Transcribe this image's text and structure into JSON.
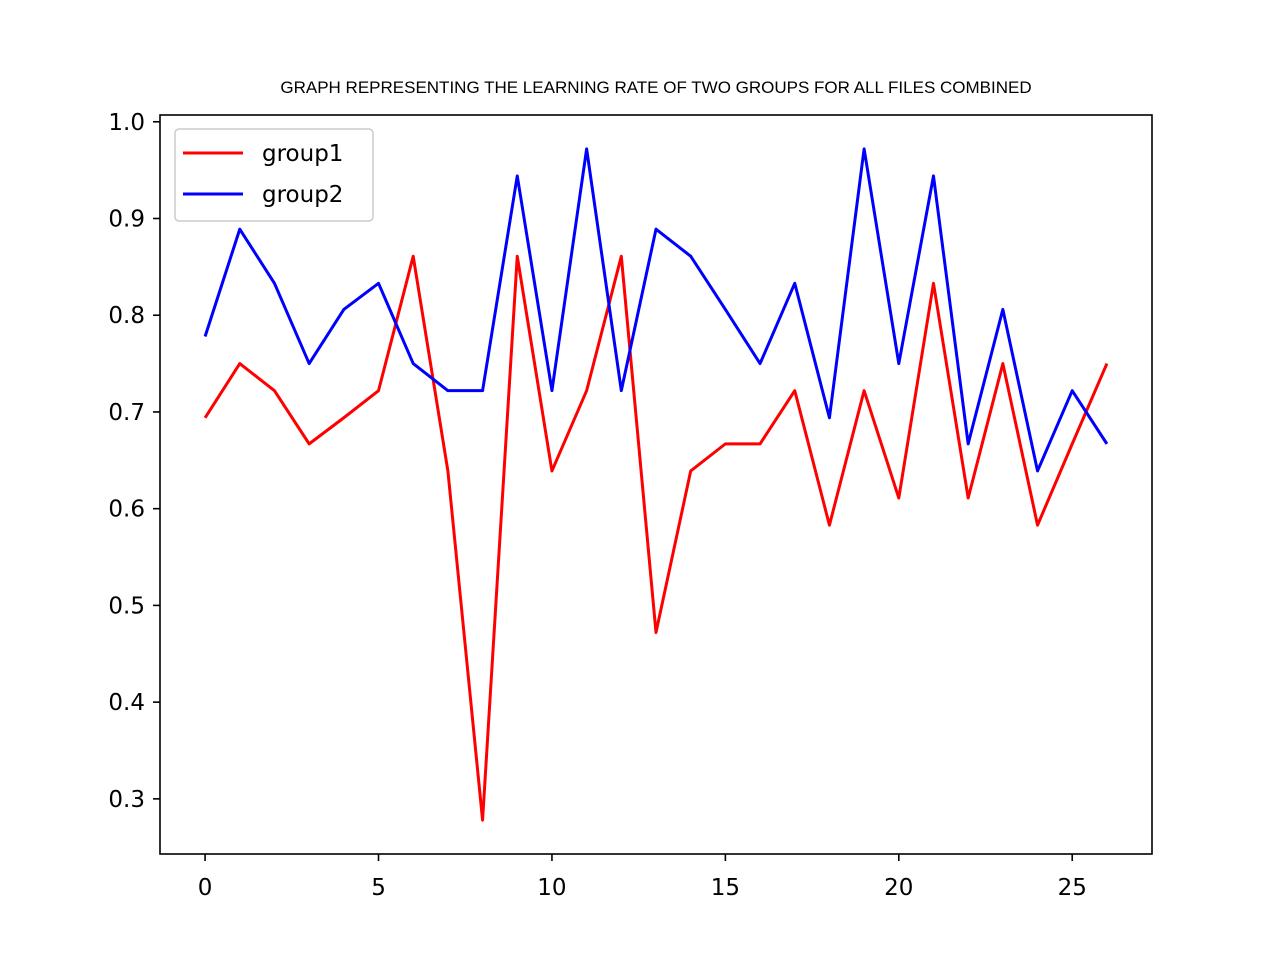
{
  "chart_data": {
    "type": "line",
    "title": "GRAPH REPRESENTING THE LEARNING RATE OF TWO GROUPS FOR ALL FILES COMBINED",
    "xlabel": "",
    "ylabel": "",
    "xlim": [
      -1.3,
      27.3
    ],
    "ylim": [
      0.243,
      1.007
    ],
    "xticks": [
      0,
      5,
      10,
      15,
      20,
      25
    ],
    "yticks": [
      0.3,
      0.4,
      0.5,
      0.6,
      0.7,
      0.8,
      0.9,
      1.0
    ],
    "xtick_labels": [
      "0",
      "5",
      "10",
      "15",
      "20",
      "25"
    ],
    "ytick_labels": [
      "0.3",
      "0.4",
      "0.5",
      "0.6",
      "0.7",
      "0.8",
      "0.9",
      "1.0"
    ],
    "grid": false,
    "legend_position": "top-left",
    "x": [
      0,
      1,
      2,
      3,
      4,
      5,
      6,
      7,
      8,
      9,
      10,
      11,
      12,
      13,
      14,
      15,
      16,
      17,
      18,
      19,
      20,
      21,
      22,
      23,
      24,
      25,
      26
    ],
    "series": [
      {
        "name": "group1",
        "color": "#ff0000",
        "values": [
          0.694,
          0.75,
          0.722,
          0.667,
          0.694,
          0.722,
          0.861,
          0.639,
          0.278,
          0.861,
          0.639,
          0.722,
          0.861,
          0.472,
          0.639,
          0.667,
          0.667,
          0.722,
          0.583,
          0.722,
          0.611,
          0.833,
          0.611,
          0.75,
          0.583,
          0.667,
          0.75
        ]
      },
      {
        "name": "group2",
        "color": "#0000ff",
        "values": [
          0.778,
          0.889,
          0.833,
          0.75,
          0.806,
          0.833,
          0.75,
          0.722,
          0.722,
          0.944,
          0.722,
          0.972,
          0.722,
          0.889,
          0.861,
          0.806,
          0.75,
          0.833,
          0.694,
          0.972,
          0.75,
          0.944,
          0.667,
          0.806,
          0.639,
          0.722,
          0.667
        ]
      }
    ]
  }
}
